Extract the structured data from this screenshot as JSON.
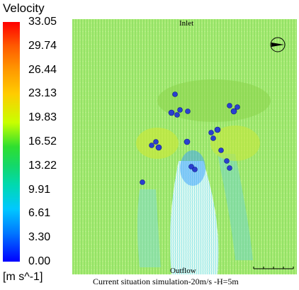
{
  "legend": {
    "title": "Velocity",
    "unit": "[m s^-1]",
    "ticks": [
      "33.05",
      "29.74",
      "26.44",
      "23.13",
      "19.83",
      "16.52",
      "13.22",
      "9.91",
      "6.61",
      "3.30",
      "0.00"
    ]
  },
  "plot": {
    "inlet_label": "Inlet",
    "outflow_label": "Outflow",
    "caption": "Current situation simulation-20m/s -H=5m",
    "colors": {
      "main_field": "#7fe04a",
      "wake": "#9fe8ff",
      "buildings": "#2a3fd0"
    }
  }
}
